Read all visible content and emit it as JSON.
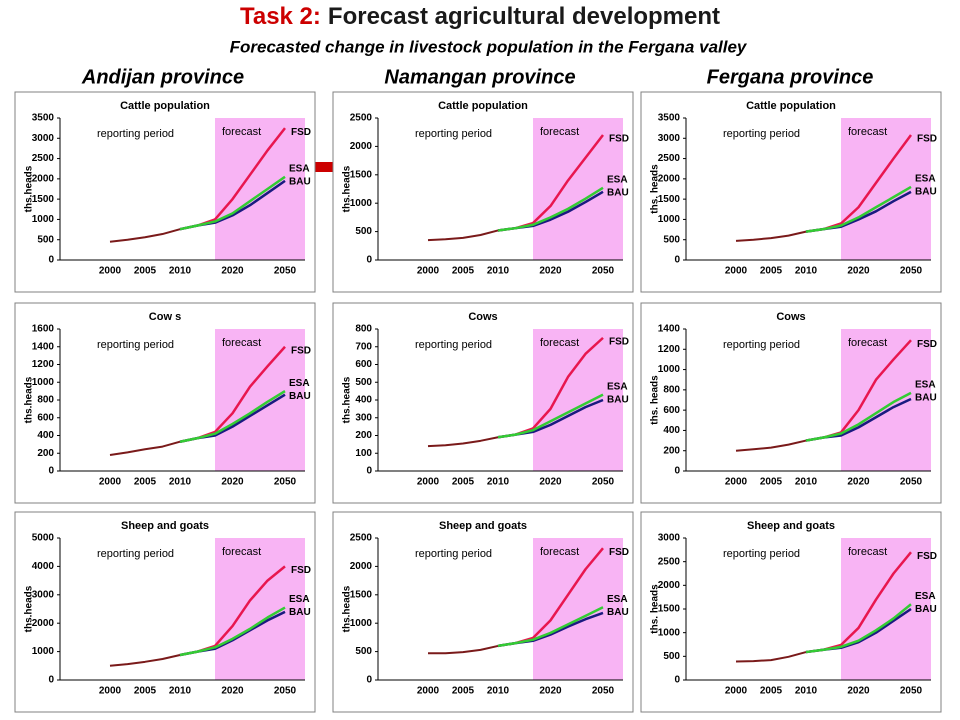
{
  "header": {
    "title_prefix": "Task 2:",
    "title": "Forecast agricultural development",
    "subtitle": "Forecasted change in livestock population in the Fergana valley"
  },
  "provinces": [
    "Andijan province",
    "Namangan province",
    "Fergana province"
  ],
  "chart_data": [
    {
      "type": "line",
      "title": "Cattle population",
      "ylabel": "ths.heads",
      "annotations": [
        "reporting period",
        "forecast"
      ],
      "categories": [
        "2000",
        null,
        "2005",
        null,
        "2010",
        null,
        null,
        "2020",
        null,
        null,
        "2050"
      ],
      "ylim": [
        0,
        3500
      ],
      "yticks": [
        0,
        500,
        1000,
        1500,
        2000,
        2500,
        3000,
        3500
      ],
      "history": {
        "color": "#7a1a1a",
        "values": [
          450,
          500,
          560,
          640,
          760,
          null,
          null,
          null,
          null,
          null,
          null
        ]
      },
      "series": [
        {
          "name": "FSD",
          "color": "#e8174f",
          "values": [
            null,
            null,
            null,
            null,
            760,
            850,
            1000,
            1500,
            2100,
            2700,
            3250
          ]
        },
        {
          "name": "BAU",
          "color": "#1a1a80",
          "values": [
            null,
            null,
            null,
            null,
            760,
            850,
            920,
            1100,
            1350,
            1650,
            1950
          ]
        },
        {
          "name": "ESA",
          "color": "#33cc33",
          "values": [
            null,
            null,
            null,
            null,
            760,
            850,
            950,
            1150,
            1450,
            1750,
            2050
          ]
        }
      ]
    },
    {
      "type": "line",
      "title": "Cattle population",
      "ylabel": "ths.heads",
      "annotations": [
        "reporting period",
        "forecast"
      ],
      "categories": [
        "2000",
        null,
        "2005",
        null,
        "2010",
        null,
        null,
        "2020",
        null,
        null,
        "2050"
      ],
      "ylim": [
        0,
        2500
      ],
      "yticks": [
        0,
        500,
        1000,
        1500,
        2000,
        2500
      ],
      "history": {
        "color": "#7a1a1a",
        "values": [
          350,
          365,
          390,
          440,
          520,
          null,
          null,
          null,
          null,
          null,
          null
        ]
      },
      "series": [
        {
          "name": "FSD",
          "color": "#e8174f",
          "values": [
            null,
            null,
            null,
            null,
            520,
            560,
            650,
            950,
            1400,
            1800,
            2200
          ]
        },
        {
          "name": "BAU",
          "color": "#1a1a80",
          "values": [
            null,
            null,
            null,
            null,
            520,
            560,
            600,
            710,
            850,
            1020,
            1200
          ]
        },
        {
          "name": "ESA",
          "color": "#33cc33",
          "values": [
            null,
            null,
            null,
            null,
            520,
            560,
            620,
            750,
            900,
            1080,
            1270
          ]
        }
      ]
    },
    {
      "type": "line",
      "title": "Cattle population",
      "ylabel": "ths. heads",
      "annotations": [
        "reporting period",
        "forecast"
      ],
      "categories": [
        "2000",
        null,
        "2005",
        null,
        "2010",
        null,
        null,
        "2020",
        null,
        null,
        "2050"
      ],
      "ylim": [
        0,
        3500
      ],
      "yticks": [
        0,
        500,
        1000,
        1500,
        2000,
        2500,
        3000,
        3500
      ],
      "history": {
        "color": "#7a1a1a",
        "values": [
          470,
          500,
          540,
          600,
          700,
          null,
          null,
          null,
          null,
          null,
          null
        ]
      },
      "series": [
        {
          "name": "FSD",
          "color": "#e8174f",
          "values": [
            null,
            null,
            null,
            null,
            700,
            760,
            900,
            1300,
            1900,
            2500,
            3080
          ]
        },
        {
          "name": "BAU",
          "color": "#1a1a80",
          "values": [
            null,
            null,
            null,
            null,
            700,
            760,
            820,
            1000,
            1200,
            1450,
            1680
          ]
        },
        {
          "name": "ESA",
          "color": "#33cc33",
          "values": [
            null,
            null,
            null,
            null,
            700,
            760,
            850,
            1050,
            1300,
            1550,
            1800
          ]
        }
      ]
    },
    {
      "type": "line",
      "title": "Cow s",
      "ylabel": "ths.heads",
      "annotations": [
        "reporting period",
        "forecast"
      ],
      "categories": [
        "2000",
        null,
        "2005",
        null,
        "2010",
        null,
        null,
        "2020",
        null,
        null,
        "2050"
      ],
      "ylim": [
        0,
        1600
      ],
      "yticks": [
        0,
        200,
        400,
        600,
        800,
        1000,
        1200,
        1400,
        1600
      ],
      "history": {
        "color": "#7a1a1a",
        "values": [
          180,
          210,
          245,
          275,
          330,
          null,
          null,
          null,
          null,
          null,
          null
        ]
      },
      "series": [
        {
          "name": "FSD",
          "color": "#e8174f",
          "values": [
            null,
            null,
            null,
            null,
            330,
            370,
            440,
            650,
            950,
            1180,
            1400
          ]
        },
        {
          "name": "BAU",
          "color": "#1a1a80",
          "values": [
            null,
            null,
            null,
            null,
            330,
            370,
            400,
            500,
            620,
            740,
            860
          ]
        },
        {
          "name": "ESA",
          "color": "#33cc33",
          "values": [
            null,
            null,
            null,
            null,
            330,
            370,
            420,
            530,
            650,
            780,
            900
          ]
        }
      ]
    },
    {
      "type": "line",
      "title": "Cows",
      "ylabel": "ths.heads",
      "annotations": [
        "reporting period",
        "forecast"
      ],
      "categories": [
        "2000",
        null,
        "2005",
        null,
        "2010",
        null,
        null,
        "2020",
        null,
        null,
        "2050"
      ],
      "ylim": [
        0,
        800
      ],
      "yticks": [
        0,
        100,
        200,
        300,
        400,
        500,
        600,
        700,
        800
      ],
      "history": {
        "color": "#7a1a1a",
        "values": [
          140,
          145,
          155,
          170,
          190,
          null,
          null,
          null,
          null,
          null,
          null
        ]
      },
      "series": [
        {
          "name": "FSD",
          "color": "#e8174f",
          "values": [
            null,
            null,
            null,
            null,
            190,
            205,
            240,
            350,
            530,
            660,
            750
          ]
        },
        {
          "name": "BAU",
          "color": "#1a1a80",
          "values": [
            null,
            null,
            null,
            null,
            190,
            205,
            220,
            260,
            310,
            360,
            400
          ]
        },
        {
          "name": "ESA",
          "color": "#33cc33",
          "values": [
            null,
            null,
            null,
            null,
            190,
            205,
            230,
            280,
            330,
            380,
            430
          ]
        }
      ]
    },
    {
      "type": "line",
      "title": "Cows",
      "ylabel": "ths. heads",
      "annotations": [
        "reporting period",
        "forecast"
      ],
      "categories": [
        "2000",
        null,
        "2005",
        null,
        "2010",
        null,
        null,
        "2020",
        null,
        null,
        "2050"
      ],
      "ylim": [
        0,
        1400
      ],
      "yticks": [
        0,
        200,
        400,
        600,
        800,
        1000,
        1200,
        1400
      ],
      "history": {
        "color": "#7a1a1a",
        "values": [
          200,
          215,
          230,
          260,
          300,
          null,
          null,
          null,
          null,
          null,
          null
        ]
      },
      "series": [
        {
          "name": "FSD",
          "color": "#e8174f",
          "values": [
            null,
            null,
            null,
            null,
            300,
            330,
            380,
            600,
            900,
            1100,
            1290
          ]
        },
        {
          "name": "BAU",
          "color": "#1a1a80",
          "values": [
            null,
            null,
            null,
            null,
            300,
            330,
            350,
            430,
            530,
            630,
            710
          ]
        },
        {
          "name": "ESA",
          "color": "#33cc33",
          "values": [
            null,
            null,
            null,
            null,
            300,
            330,
            370,
            460,
            570,
            680,
            770
          ]
        }
      ]
    },
    {
      "type": "line",
      "title": "Sheep and goats",
      "ylabel": "ths.heads",
      "annotations": [
        "reporting period",
        "forecast"
      ],
      "categories": [
        "2000",
        null,
        "2005",
        null,
        "2010",
        null,
        null,
        "2020",
        null,
        null,
        "2050"
      ],
      "ylim": [
        0,
        5000
      ],
      "yticks": [
        0,
        1000,
        2000,
        3000,
        4000,
        5000
      ],
      "history": {
        "color": "#7a1a1a",
        "values": [
          500,
          560,
          640,
          740,
          880,
          null,
          null,
          null,
          null,
          null,
          null
        ]
      },
      "series": [
        {
          "name": "FSD",
          "color": "#e8174f",
          "values": [
            null,
            null,
            null,
            null,
            880,
            1000,
            1200,
            1900,
            2800,
            3500,
            4000
          ]
        },
        {
          "name": "BAU",
          "color": "#1a1a80",
          "values": [
            null,
            null,
            null,
            null,
            880,
            1000,
            1100,
            1400,
            1750,
            2100,
            2400
          ]
        },
        {
          "name": "ESA",
          "color": "#33cc33",
          "values": [
            null,
            null,
            null,
            null,
            880,
            1000,
            1150,
            1450,
            1800,
            2200,
            2550
          ]
        }
      ]
    },
    {
      "type": "line",
      "title": "Sheep  and goats",
      "ylabel": "ths.heads",
      "annotations": [
        "reporting period",
        "forecast"
      ],
      "categories": [
        "2000",
        null,
        "2005",
        null,
        "2010",
        null,
        null,
        "2020",
        null,
        null,
        "2050"
      ],
      "ylim": [
        0,
        2500
      ],
      "yticks": [
        0,
        500,
        1000,
        1500,
        2000,
        2500
      ],
      "history": {
        "color": "#7a1a1a",
        "values": [
          470,
          470,
          490,
          530,
          600,
          null,
          null,
          null,
          null,
          null,
          null
        ]
      },
      "series": [
        {
          "name": "FSD",
          "color": "#e8174f",
          "values": [
            null,
            null,
            null,
            null,
            600,
            650,
            740,
            1050,
            1500,
            1950,
            2320
          ]
        },
        {
          "name": "BAU",
          "color": "#1a1a80",
          "values": [
            null,
            null,
            null,
            null,
            600,
            650,
            690,
            800,
            940,
            1070,
            1180
          ]
        },
        {
          "name": "ESA",
          "color": "#33cc33",
          "values": [
            null,
            null,
            null,
            null,
            600,
            650,
            710,
            830,
            980,
            1130,
            1280
          ]
        }
      ]
    },
    {
      "type": "line",
      "title": "Sheep and goats",
      "ylabel": "ths. heads",
      "annotations": [
        "reporting period",
        "forecast"
      ],
      "categories": [
        "2000",
        null,
        "2005",
        null,
        "2010",
        null,
        null,
        "2020",
        null,
        null,
        "2050"
      ],
      "ylim": [
        0,
        3000
      ],
      "yticks": [
        0,
        500,
        1000,
        1500,
        2000,
        2500,
        3000
      ],
      "history": {
        "color": "#7a1a1a",
        "values": [
          390,
          400,
          420,
          490,
          590,
          null,
          null,
          null,
          null,
          null,
          null
        ]
      },
      "series": [
        {
          "name": "FSD",
          "color": "#e8174f",
          "values": [
            null,
            null,
            null,
            null,
            590,
            640,
            740,
            1100,
            1700,
            2250,
            2700
          ]
        },
        {
          "name": "BAU",
          "color": "#1a1a80",
          "values": [
            null,
            null,
            null,
            null,
            590,
            640,
            680,
            800,
            1000,
            1250,
            1500
          ]
        },
        {
          "name": "ESA",
          "color": "#33cc33",
          "values": [
            null,
            null,
            null,
            null,
            590,
            640,
            700,
            830,
            1050,
            1300,
            1600
          ]
        }
      ]
    }
  ]
}
